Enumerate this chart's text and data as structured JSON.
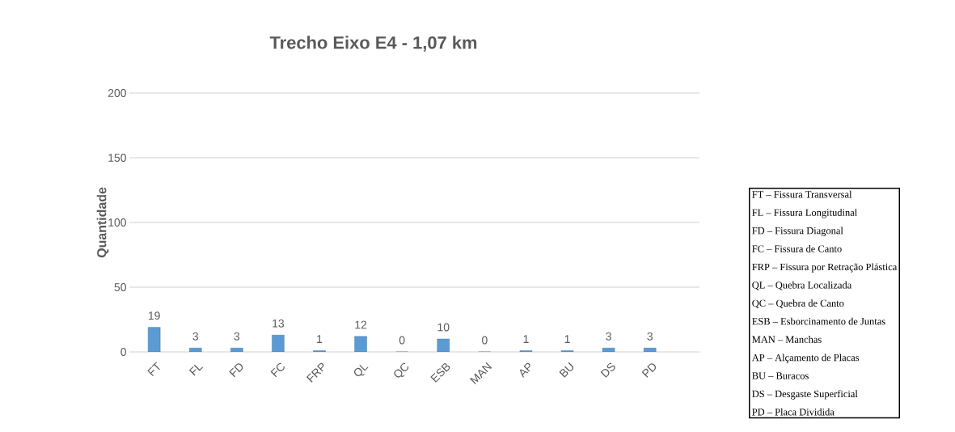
{
  "chart_data": {
    "type": "bar",
    "title": "Trecho Eixo E4 - 1,07 km",
    "ylabel": "Quantidade",
    "categories": [
      "FT",
      "FL",
      "FD",
      "FC",
      "FRP",
      "QL",
      "QC",
      "ESB",
      "MAN",
      "AP",
      "BU",
      "DS",
      "PD"
    ],
    "values": [
      19,
      3,
      3,
      13,
      1,
      12,
      0,
      10,
      0,
      1,
      1,
      3,
      3
    ],
    "color": "#5b9bd5",
    "ylim": [
      0,
      200
    ],
    "yticks": [
      0,
      50,
      100,
      150,
      200
    ],
    "grid": "y",
    "data_labels": true,
    "annotations": [
      "FT – Fissura Transversal",
      "FL – Fissura Longitudinal",
      "FD – Fissura Diagonal",
      "FC – Fissura de Canto",
      "FRP – Fissura por Retração Plástica",
      "QL – Quebra Localizada",
      "QC – Quebra de Canto",
      "ESB – Esborcinamento de Juntas",
      "MAN – Manchas",
      "AP – Alçamento de Placas",
      "BU – Buracos",
      "DS – Desgaste Superficial",
      "PD – Placa Dividida"
    ]
  }
}
